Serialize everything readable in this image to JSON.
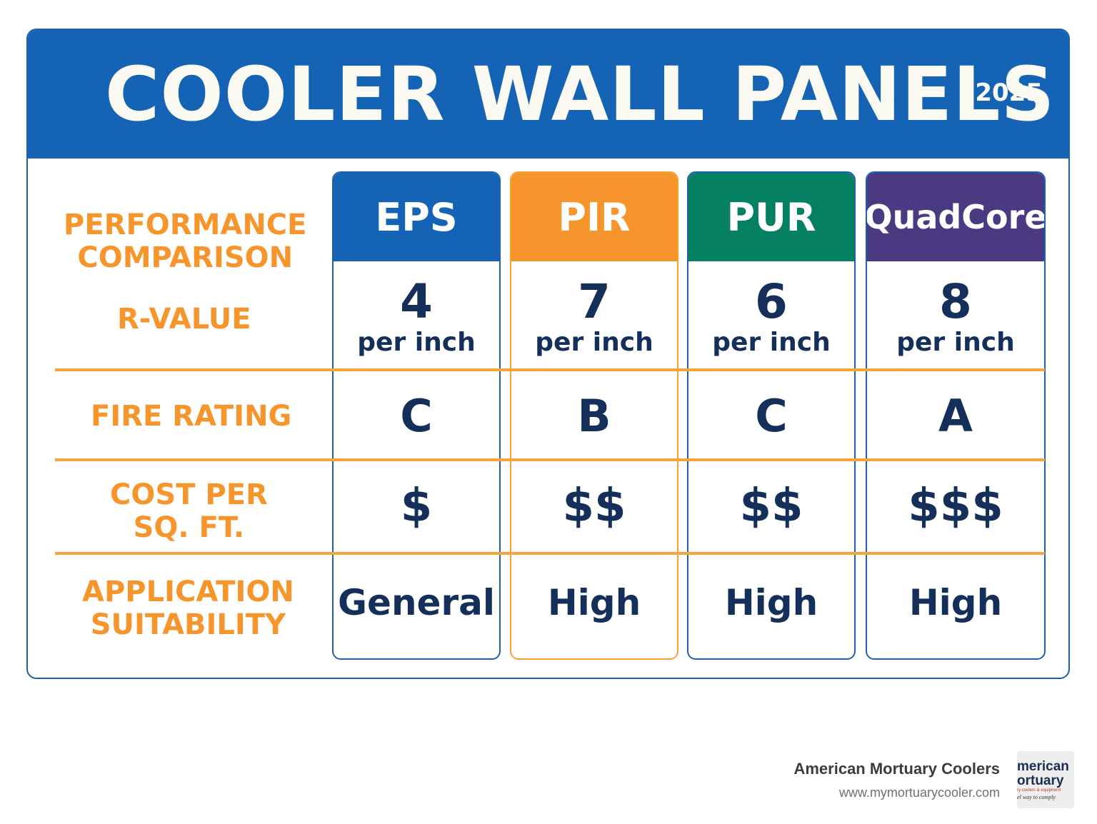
{
  "header": {
    "title": "COOLER WALL PANELS",
    "year": "2025"
  },
  "row_labels": {
    "performance": [
      "PERFORMANCE",
      "COMPARISON"
    ],
    "r_value": "R-VALUE",
    "fire_rating": "FIRE RATING",
    "cost": [
      "COST PER",
      "SQ. FT."
    ],
    "application": [
      "APPLICATION",
      "SUITABILITY"
    ]
  },
  "columns": [
    {
      "name": "EPS",
      "color": "#1563b4",
      "r_value": "4",
      "r_unit": "per inch",
      "fire": "C",
      "cost": "$",
      "application": "General"
    },
    {
      "name": "PIR",
      "color": "#f7952d",
      "r_value": "7",
      "r_unit": "per inch",
      "fire": "B",
      "cost": "$$",
      "application": "High"
    },
    {
      "name": "PUR",
      "color": "#068062",
      "r_value": "6",
      "r_unit": "per inch",
      "fire": "C",
      "cost": "$$",
      "application": "High"
    },
    {
      "name": "QuadCore",
      "color": "#4a3a82",
      "r_value": "8",
      "r_unit": "per inch",
      "fire": "A",
      "cost": "$$$",
      "application": "High"
    }
  ],
  "colors": {
    "label": "#f7952d",
    "values": "#14305a",
    "divider": "#f7a53a"
  },
  "footer": {
    "company": "American Mortuary Coolers",
    "url": "www.mymortuarycooler.com",
    "logo_text": [
      "merican",
      "ortuary",
      "ry coolers & equipment",
      "el way to comply"
    ]
  }
}
